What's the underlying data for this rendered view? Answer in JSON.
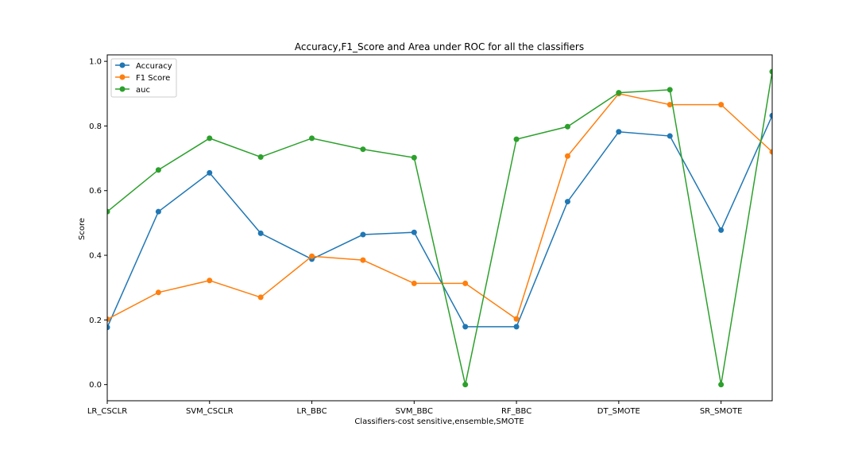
{
  "chart_data": {
    "type": "line",
    "title": "Accuracy,F1_Score and Area under ROC for all the classifiers",
    "xlabel": "Classifiers-cost sensitive,ensemble,SMOTE",
    "ylabel": "Score",
    "x_tick_labels": [
      "LR_CSCLR",
      "SVM_CSCLR",
      "LR_BBC",
      "SVM_BBC",
      "RF_BBC",
      "DT_SMOTE",
      "SR_SMOTE"
    ],
    "y_ticks": [
      "0.0",
      "0.2",
      "0.4",
      "0.6",
      "0.8",
      "1.0"
    ],
    "ylim": [
      -0.05,
      1.02
    ],
    "n_points": 14,
    "legend_position": "top-left",
    "grid": false,
    "series": [
      {
        "name": "Accuracy",
        "color": "#1f77b4",
        "values": [
          0.177,
          0.535,
          0.655,
          0.468,
          0.388,
          0.464,
          0.471,
          0.179,
          0.179,
          0.566,
          0.782,
          0.769,
          0.478,
          0.832
        ]
      },
      {
        "name": "F1 Score",
        "color": "#ff7f0e",
        "values": [
          0.202,
          0.285,
          0.322,
          0.27,
          0.397,
          0.385,
          0.313,
          0.313,
          0.203,
          0.707,
          0.9,
          0.866,
          0.866,
          0.72
        ]
      },
      {
        "name": "auc",
        "color": "#2ca02c",
        "values": [
          0.535,
          0.664,
          0.762,
          0.704,
          0.762,
          0.728,
          0.702,
          0.0,
          0.759,
          0.798,
          0.903,
          0.912,
          0.0,
          0.968
        ]
      }
    ]
  }
}
